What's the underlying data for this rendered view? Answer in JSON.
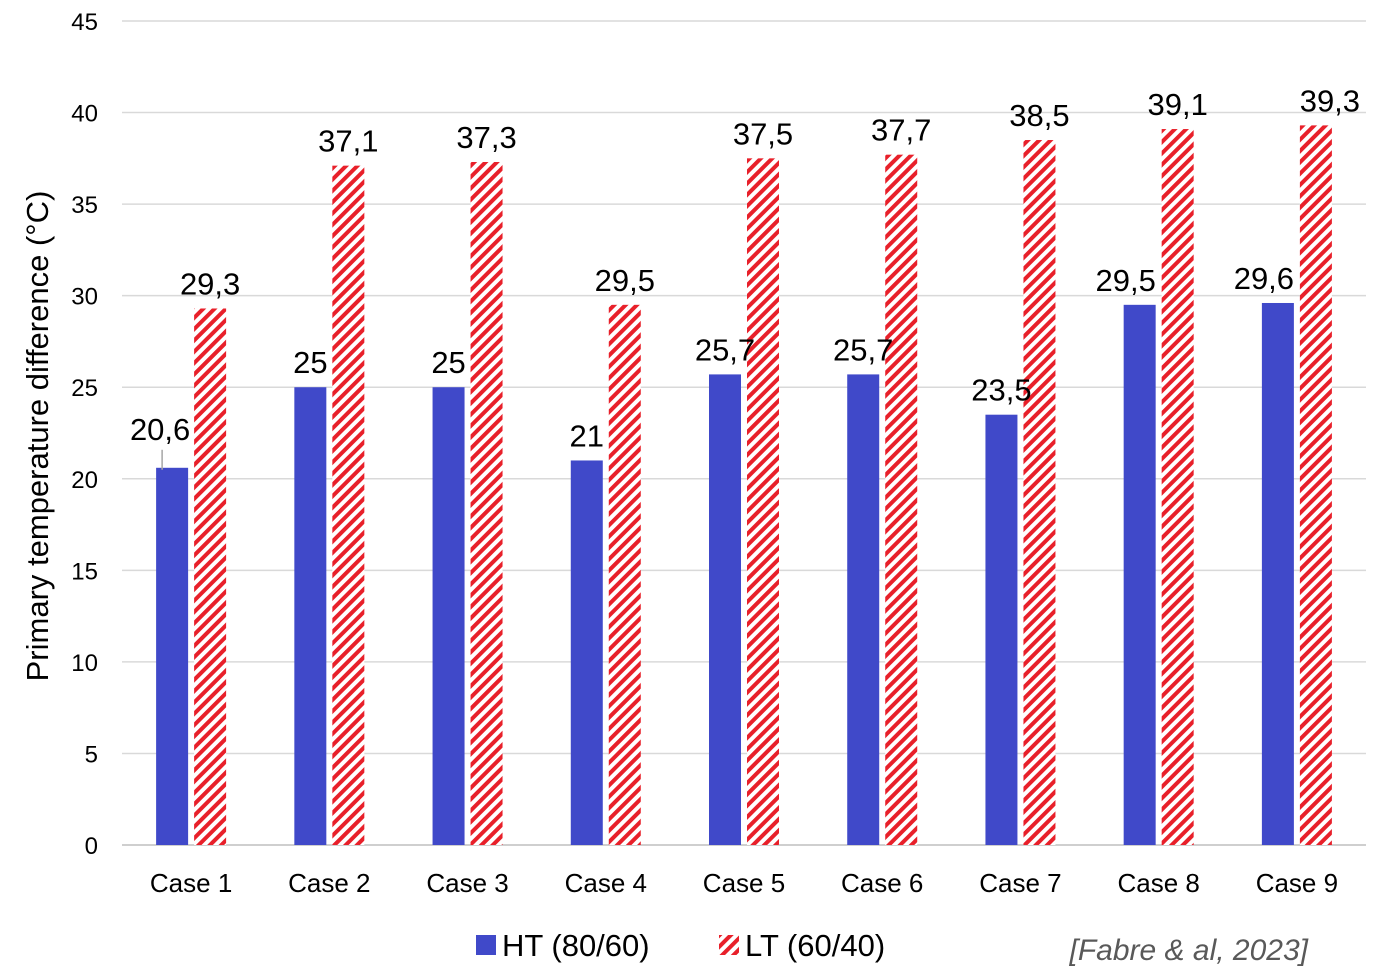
{
  "chart_data": {
    "type": "bar",
    "title": "",
    "xlabel": "",
    "ylabel": "Primary temperature difference (°C)",
    "ylim": [
      0,
      45
    ],
    "y_ticks": [
      0,
      5,
      10,
      15,
      20,
      25,
      30,
      35,
      40,
      45
    ],
    "grid": true,
    "legend_position": "bottom",
    "categories": [
      "Case 1",
      "Case 2",
      "Case 3",
      "Case 4",
      "Case 5",
      "Case 6",
      "Case 7",
      "Case 8",
      "Case 9"
    ],
    "series": [
      {
        "name": "HT (80/60)",
        "color": "#4049c9",
        "pattern": "solid",
        "values": [
          20.6,
          25,
          25,
          21,
          25.7,
          25.7,
          23.5,
          29.5,
          29.6
        ],
        "labels": [
          "20,6",
          "25",
          "25",
          "21",
          "25,7",
          "25,7",
          "23,5",
          "29,5",
          "29,6"
        ]
      },
      {
        "name": "LT (60/40)",
        "color": "#e8202a",
        "pattern": "diagonal-stripes",
        "values": [
          29.3,
          37.1,
          37.3,
          29.5,
          37.5,
          37.7,
          38.5,
          39.1,
          39.3
        ],
        "labels": [
          "29,3",
          "37,1",
          "37,3",
          "29,5",
          "37,5",
          "37,7",
          "38,5",
          "39,1",
          "39,3"
        ]
      }
    ],
    "annotations": [
      "[Fabre & al, 2023]"
    ]
  },
  "colors": {
    "grid": "#d9d9d9",
    "axis": "#bfbfbf",
    "leader_line": "#a6a6a6"
  }
}
